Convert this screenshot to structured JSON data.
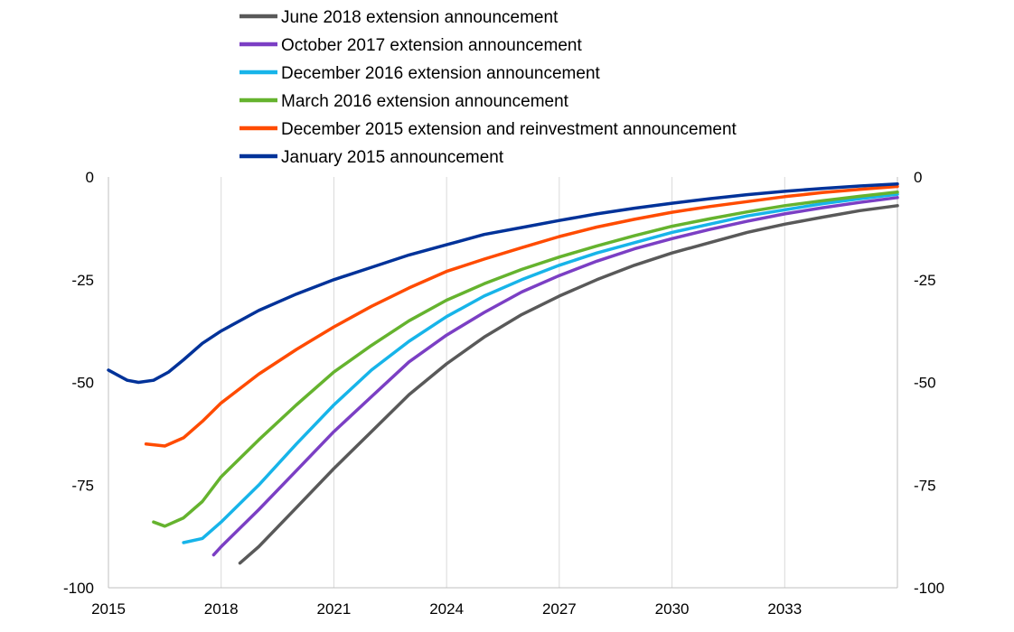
{
  "chart_data": {
    "type": "line",
    "title": "",
    "xlabel": "",
    "ylabel": "",
    "xlim": [
      2015,
      2036
    ],
    "ylim": [
      -100,
      0
    ],
    "x_ticks": [
      "2015",
      "2018",
      "2021",
      "2024",
      "2027",
      "2030",
      "2033"
    ],
    "x_tick_values": [
      2015,
      2018,
      2021,
      2024,
      2027,
      2030,
      2033
    ],
    "y_ticks_left": [
      "0",
      "-25",
      "-50",
      "-75",
      "-100"
    ],
    "y_ticks_right": [
      "0",
      "-25",
      "-50",
      "-75",
      "-100"
    ],
    "y_tick_values": [
      0,
      -25,
      -50,
      -75,
      -100
    ],
    "grid": "vertical",
    "legend_position": "top",
    "series": [
      {
        "name": "June 2018 extension announcement",
        "color": "#595959",
        "x": [
          2018.5,
          2019,
          2020,
          2021,
          2022,
          2023,
          2024,
          2025,
          2026,
          2027,
          2028,
          2029,
          2030,
          2031,
          2032,
          2033,
          2034,
          2035,
          2036
        ],
        "values": [
          -94,
          -90,
          -80.5,
          -71,
          -62,
          -53,
          -45.5,
          -39,
          -33.5,
          -29,
          -25,
          -21.5,
          -18.5,
          -16,
          -13.5,
          -11.5,
          -9.8,
          -8.2,
          -7
        ]
      },
      {
        "name": "October 2017 extension announcement",
        "color": "#7B3FC4",
        "x": [
          2017.8,
          2018,
          2019,
          2020,
          2021,
          2022,
          2023,
          2024,
          2025,
          2026,
          2027,
          2028,
          2029,
          2030,
          2031,
          2032,
          2033,
          2034,
          2035,
          2036
        ],
        "values": [
          -92,
          -90,
          -81,
          -71.5,
          -62,
          -53.5,
          -45,
          -38.5,
          -33,
          -28,
          -24,
          -20.5,
          -17.5,
          -15,
          -12.8,
          -10.8,
          -9,
          -7.5,
          -6.2,
          -5
        ]
      },
      {
        "name": "December 2016 extension announcement",
        "color": "#17B4E9",
        "x": [
          2017,
          2017.5,
          2018,
          2019,
          2020,
          2021,
          2022,
          2023,
          2024,
          2025,
          2026,
          2027,
          2028,
          2029,
          2030,
          2031,
          2032,
          2033,
          2034,
          2035,
          2036
        ],
        "values": [
          -89,
          -88,
          -84,
          -75,
          -65,
          -55.5,
          -47,
          -40,
          -34,
          -29,
          -25,
          -21.5,
          -18.5,
          -16,
          -13.5,
          -11.5,
          -9.5,
          -8,
          -6.5,
          -5.3,
          -4.2
        ]
      },
      {
        "name": "March 2016 extension announcement",
        "color": "#65B32E",
        "x": [
          2016.2,
          2016.5,
          2017,
          2017.5,
          2018,
          2019,
          2020,
          2021,
          2022,
          2023,
          2024,
          2025,
          2026,
          2027,
          2028,
          2029,
          2030,
          2031,
          2032,
          2033,
          2034,
          2035,
          2036
        ],
        "values": [
          -84,
          -85,
          -83,
          -79,
          -73,
          -64,
          -55.5,
          -47.5,
          -41,
          -35,
          -30,
          -26,
          -22.5,
          -19.5,
          -16.8,
          -14.3,
          -12,
          -10.2,
          -8.5,
          -7,
          -5.8,
          -4.7,
          -3.7
        ]
      },
      {
        "name": "December 2015 extension and reinvestment announcement",
        "color": "#FF4B00",
        "x": [
          2016,
          2016.5,
          2017,
          2017.5,
          2018,
          2019,
          2020,
          2021,
          2022,
          2023,
          2024,
          2025,
          2026,
          2027,
          2028,
          2029,
          2030,
          2031,
          2032,
          2033,
          2034,
          2035,
          2036
        ],
        "values": [
          -65,
          -65.5,
          -63.5,
          -59.5,
          -55,
          -48,
          -42,
          -36.5,
          -31.5,
          -27,
          -23,
          -20,
          -17.2,
          -14.5,
          -12.2,
          -10.3,
          -8.6,
          -7.2,
          -6,
          -4.8,
          -3.8,
          -3,
          -2.3
        ]
      },
      {
        "name": "January 2015 announcement",
        "color": "#003299",
        "x": [
          2015,
          2015.5,
          2015.8,
          2016.2,
          2016.6,
          2017,
          2017.5,
          2018,
          2019,
          2020,
          2021,
          2022,
          2023,
          2024,
          2025,
          2026,
          2027,
          2028,
          2029,
          2030,
          2031,
          2032,
          2033,
          2034,
          2035,
          2036
        ],
        "values": [
          -47,
          -49.5,
          -50,
          -49.5,
          -47.5,
          -44.5,
          -40.5,
          -37.5,
          -32.5,
          -28.5,
          -25,
          -22,
          -19,
          -16.5,
          -14,
          -12.3,
          -10.6,
          -9,
          -7.6,
          -6.4,
          -5.3,
          -4.3,
          -3.5,
          -2.8,
          -2.2,
          -1.7
        ]
      }
    ],
    "legend_order": [
      0,
      1,
      2,
      3,
      4,
      5
    ]
  }
}
